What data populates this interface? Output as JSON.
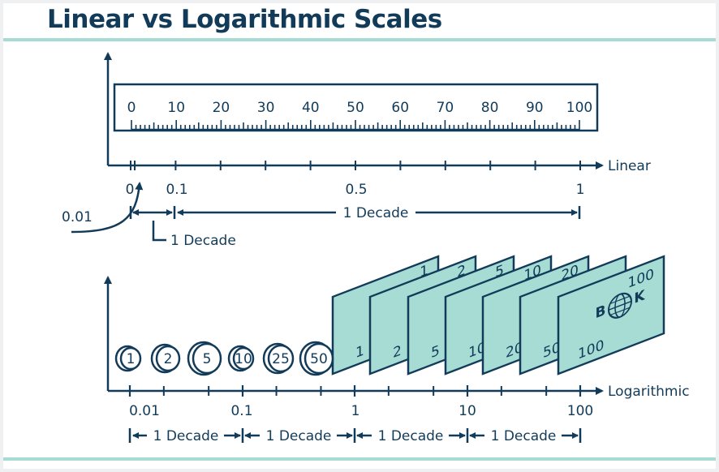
{
  "title": "Linear vs Logarithmic Scales",
  "colors": {
    "ink": "#123b5a",
    "teal": "#a7dcd4",
    "page": "#ffffff",
    "frame": "#eef0f1",
    "rule": "#a7dcd4"
  },
  "ruler_labels": [
    "0",
    "10",
    "20",
    "30",
    "40",
    "50",
    "60",
    "70",
    "80",
    "90",
    "100"
  ],
  "linear": {
    "axis_name": "Linear",
    "tick_labels": [
      "0",
      "0.1",
      "0.5",
      "1"
    ],
    "callout_value": "0.01",
    "decade_main": "1 Decade",
    "decade_small": "1 Decade"
  },
  "log": {
    "axis_name": "Logarithmic",
    "tick_labels": [
      "0.01",
      "0.1",
      "1",
      "10",
      "100"
    ],
    "decade_labels": [
      "1 Decade",
      "1 Decade",
      "1 Decade",
      "1 Decade"
    ],
    "coins": [
      "1",
      "2",
      "5",
      "10",
      "25",
      "50"
    ],
    "bills": [
      {
        "top": "1",
        "bottom": "1"
      },
      {
        "top": "2",
        "bottom": "2"
      },
      {
        "top": "5",
        "bottom": "5"
      },
      {
        "top": "10",
        "bottom": "10"
      },
      {
        "top": "20",
        "bottom": "20"
      },
      {
        "top": "",
        "bottom": "50"
      },
      {
        "top": "100",
        "bottom": "100"
      }
    ],
    "bank_letters": [
      "B",
      "K"
    ]
  }
}
